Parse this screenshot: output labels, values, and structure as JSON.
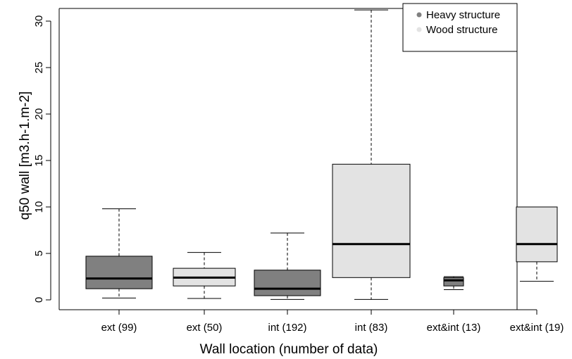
{
  "chart_data": {
    "type": "boxplot",
    "xlabel": "Wall location (number of data)",
    "ylabel": "q50 wall [m3.h-1.m-2]",
    "ylim": [
      -0.6,
      31
    ],
    "yticks": [
      0,
      5,
      10,
      15,
      20,
      25,
      30
    ],
    "legend": {
      "placement": "top-right",
      "entries": [
        {
          "label": "Heavy structure",
          "color": "#808080"
        },
        {
          "label": "Wood structure",
          "color": "#e3e3e3"
        }
      ]
    },
    "boxes": [
      {
        "label": "ext (99)",
        "structure": "Heavy structure",
        "color": "#808080",
        "min": 0.2,
        "q1": 1.2,
        "median": 2.3,
        "q3": 4.7,
        "max": 9.8
      },
      {
        "label": "ext (50)",
        "structure": "Wood structure",
        "color": "#e3e3e3",
        "min": 0.15,
        "q1": 1.5,
        "median": 2.4,
        "q3": 3.4,
        "max": 5.1
      },
      {
        "label": "int (192)",
        "structure": "Heavy structure",
        "color": "#808080",
        "min": 0.05,
        "q1": 0.45,
        "median": 1.2,
        "q3": 3.2,
        "max": 7.2
      },
      {
        "label": "int (83)",
        "structure": "Wood structure",
        "color": "#e3e3e3",
        "min": 0.05,
        "q1": 2.4,
        "median": 6.0,
        "q3": 14.6,
        "max": 31.2
      },
      {
        "label": "ext&int (13)",
        "structure": "Heavy structure",
        "color": "#808080",
        "min": 1.1,
        "q1": 1.5,
        "median": 2.1,
        "q3": 2.4,
        "max": 2.5
      },
      {
        "label": "ext&int (19)",
        "structure": "Wood structure",
        "color": "#e3e3e3",
        "min": 2.0,
        "q1": 4.1,
        "median": 6.0,
        "q3": 10.0,
        "max": 10.0
      }
    ]
  }
}
